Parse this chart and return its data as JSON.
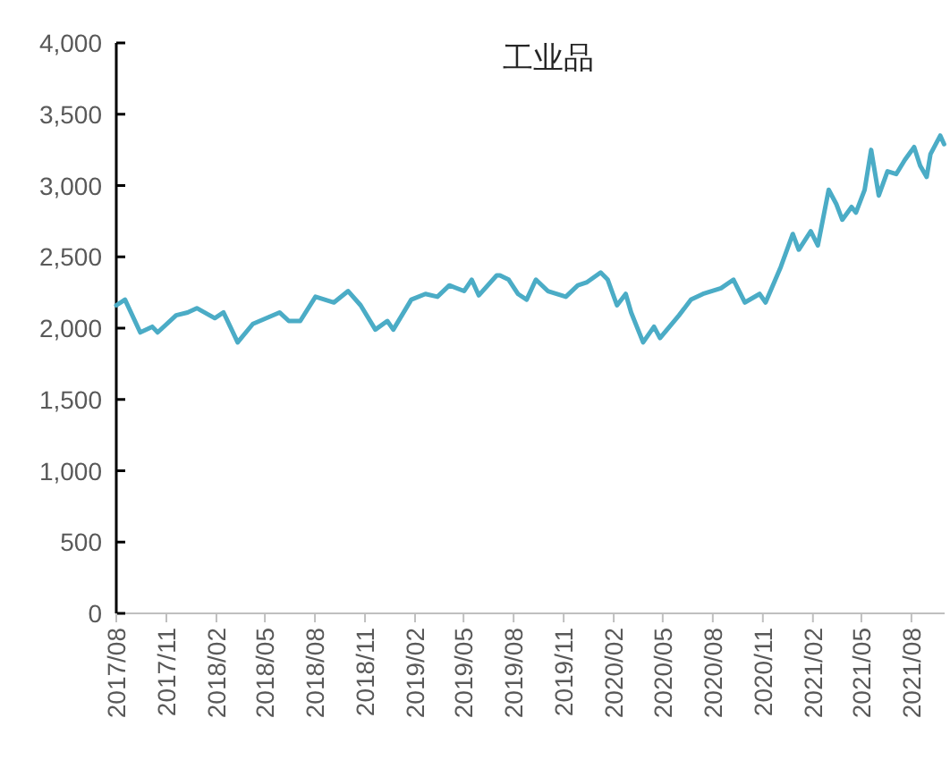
{
  "chart_data": {
    "type": "line",
    "title": "工业品",
    "x": [
      "2017-08-01",
      "2017-08-17",
      "2017-09-14",
      "2017-10-06",
      "2017-10-16",
      "2017-11-19",
      "2017-12-10",
      "2017-12-27",
      "2018-01-29",
      "2018-02-14",
      "2018-03-12",
      "2018-04-09",
      "2018-05-28",
      "2018-06-14",
      "2018-07-05",
      "2018-08-02",
      "2018-09-05",
      "2018-10-01",
      "2018-10-24",
      "2018-11-20",
      "2018-12-12",
      "2018-12-23",
      "2019-01-25",
      "2019-02-20",
      "2019-03-14",
      "2019-04-05",
      "2019-05-02",
      "2019-05-16",
      "2019-05-29",
      "2019-07-01",
      "2019-07-07",
      "2019-07-23",
      "2019-08-09",
      "2019-08-25",
      "2019-09-11",
      "2019-10-03",
      "2019-11-05",
      "2019-11-27",
      "2019-12-13",
      "2020-01-08",
      "2020-01-21",
      "2020-02-07",
      "2020-02-23",
      "2020-03-04",
      "2020-03-26",
      "2020-04-15",
      "2020-04-26",
      "2020-05-31",
      "2020-06-22",
      "2020-07-14",
      "2020-08-16",
      "2020-09-08",
      "2020-09-29",
      "2020-10-26",
      "2020-11-06",
      "2020-12-04",
      "2020-12-26",
      "2021-01-06",
      "2021-01-28",
      "2021-02-10",
      "2021-03-02",
      "2021-03-16",
      "2021-03-27",
      "2021-04-13",
      "2021-04-21",
      "2021-05-07",
      "2021-05-19",
      "2021-06-02",
      "2021-06-18",
      "2021-07-04",
      "2021-07-20",
      "2021-08-06",
      "2021-08-17",
      "2021-08-29",
      "2021-09-05",
      "2021-09-23",
      "2021-09-30"
    ],
    "series": [
      {
        "color": "#4bacc6",
        "values": [
          2160,
          2200,
          1970,
          2010,
          1970,
          2090,
          2110,
          2140,
          2070,
          2110,
          1900,
          2030,
          2110,
          2050,
          2050,
          2220,
          2180,
          2260,
          2160,
          1990,
          2050,
          1990,
          2200,
          2240,
          2220,
          2300,
          2260,
          2340,
          2230,
          2370,
          2370,
          2340,
          2240,
          2200,
          2340,
          2260,
          2220,
          2300,
          2320,
          2390,
          2340,
          2160,
          2240,
          2110,
          1900,
          2010,
          1930,
          2090,
          2200,
          2240,
          2280,
          2340,
          2180,
          2240,
          2180,
          2430,
          2660,
          2550,
          2680,
          2580,
          2970,
          2870,
          2760,
          2850,
          2810,
          2970,
          3250,
          2930,
          3100,
          3080,
          3180,
          3270,
          3140,
          3060,
          3220,
          3350,
          3290
        ]
      }
    ],
    "xlim": [
      "2017-08-01",
      "2021-10-01"
    ],
    "xticks": [
      {
        "value": "2017-08-01",
        "label": "2017/08"
      },
      {
        "value": "2017-11-01",
        "label": "2017/11"
      },
      {
        "value": "2018-02-01",
        "label": "2018/02"
      },
      {
        "value": "2018-05-01",
        "label": "2018/05"
      },
      {
        "value": "2018-08-01",
        "label": "2018/08"
      },
      {
        "value": "2018-11-01",
        "label": "2018/11"
      },
      {
        "value": "2019-02-01",
        "label": "2019/02"
      },
      {
        "value": "2019-05-01",
        "label": "2019/05"
      },
      {
        "value": "2019-08-01",
        "label": "2019/08"
      },
      {
        "value": "2019-11-01",
        "label": "2019/11"
      },
      {
        "value": "2020-02-01",
        "label": "2020/02"
      },
      {
        "value": "2020-05-01",
        "label": "2020/05"
      },
      {
        "value": "2020-08-01",
        "label": "2020/08"
      },
      {
        "value": "2020-11-01",
        "label": "2020/11"
      },
      {
        "value": "2021-02-01",
        "label": "2021/02"
      },
      {
        "value": "2021-05-01",
        "label": "2021/05"
      },
      {
        "value": "2021-08-01",
        "label": "2021/08"
      }
    ],
    "ylim": [
      0,
      4000
    ],
    "yticks": [
      0,
      {
        "value": 500,
        "label": "500"
      },
      {
        "value": 1000,
        "label": "1,000"
      },
      {
        "value": 1500,
        "label": "1,500"
      },
      {
        "value": 2000,
        "label": "2,000"
      },
      {
        "value": 2500,
        "label": "2,500"
      },
      {
        "value": 3000,
        "label": "3,000"
      },
      {
        "value": 3500,
        "label": "3,500"
      },
      {
        "value": 4000,
        "label": "4,000"
      }
    ],
    "grid": false,
    "marker": "none",
    "line_style": "solid"
  }
}
